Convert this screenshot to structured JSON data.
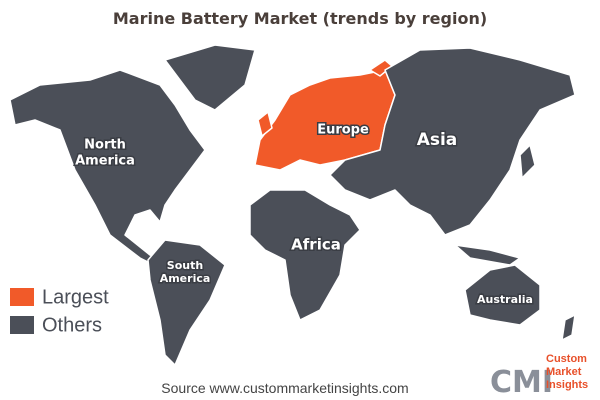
{
  "title": "Marine Battery  Market  (trends by region)",
  "regions": [
    {
      "lines": [
        "North",
        "America"
      ],
      "category": "Others"
    },
    {
      "lines": [
        "Europe"
      ],
      "category": "Largest"
    },
    {
      "lines": [
        "Asia"
      ],
      "category": "Others"
    },
    {
      "lines": [
        "Africa"
      ],
      "category": "Others"
    },
    {
      "lines": [
        "South",
        "America"
      ],
      "category": "Others"
    },
    {
      "lines": [
        "Australia"
      ],
      "category": "Others"
    }
  ],
  "legend": [
    {
      "label": "Largest",
      "color": "#f15a29"
    },
    {
      "label": "Others",
      "color": "#4b4f58"
    }
  ],
  "source": "Source www.custommarketinsights.com",
  "logo": {
    "mark": "CMI",
    "lines": [
      "Custom",
      "Market",
      "Insights"
    ]
  }
}
